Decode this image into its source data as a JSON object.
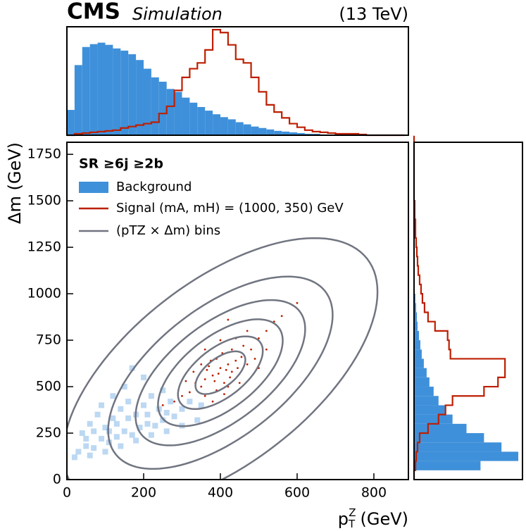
{
  "chart_data": [
    {
      "type": "scatter",
      "title": {
        "experiment": "CMS",
        "status": "Simulation",
        "energy": "(13 TeV)"
      },
      "x_label": {
        "base": "p",
        "sub": "T",
        "sup": "Z",
        "unit": "(GeV)"
      },
      "y_label": "Δm (GeV)",
      "legend_title": "SR  ≥6j  ≥2b",
      "xlim": [
        0,
        890
      ],
      "ylim": [
        0,
        1815
      ],
      "xticks": [
        0,
        200,
        400,
        600,
        800
      ],
      "yticks": [
        0,
        250,
        500,
        750,
        1000,
        1250,
        1500,
        1750
      ],
      "series": [
        {
          "name": "Background",
          "color": "#3f90da",
          "x": [
            30,
            50,
            70,
            90,
            110,
            130,
            150,
            170,
            190,
            210,
            230,
            250,
            40,
            60,
            80,
            100,
            120,
            140,
            160,
            180,
            200,
            220,
            240,
            260,
            280,
            300,
            20,
            60,
            100,
            140,
            180,
            220,
            260,
            300,
            340,
            120,
            90,
            150,
            200,
            170,
            250,
            320,
            50,
            70,
            110,
            130,
            160,
            210,
            270,
            350
          ],
          "y": [
            150,
            180,
            170,
            220,
            200,
            230,
            260,
            240,
            280,
            300,
            290,
            320,
            250,
            300,
            350,
            280,
            330,
            380,
            420,
            350,
            400,
            450,
            380,
            360,
            340,
            380,
            120,
            130,
            150,
            180,
            210,
            240,
            260,
            290,
            320,
            450,
            400,
            500,
            550,
            600,
            480,
            420,
            220,
            260,
            260,
            300,
            330,
            350,
            420,
            400
          ]
        },
        {
          "name": "Signal (mA, mH) = (1000, 350) GeV",
          "color": "#bd1f01",
          "x": [
            380,
            400,
            420,
            360,
            390,
            410,
            430,
            370,
            350,
            440,
            395,
            415,
            385,
            405,
            425,
            365,
            445,
            375,
            455,
            335,
            480,
            320,
            500,
            300,
            460,
            390,
            350,
            430,
            470,
            410,
            520,
            280,
            540,
            360,
            450,
            400,
            330,
            490,
            420,
            380,
            560,
            250,
            470,
            440,
            310,
            500,
            360,
            600,
            420,
            520
          ],
          "y": [
            560,
            600,
            620,
            540,
            650,
            520,
            580,
            610,
            500,
            640,
            570,
            590,
            530,
            680,
            550,
            590,
            600,
            640,
            660,
            520,
            700,
            470,
            760,
            450,
            720,
            480,
            620,
            700,
            620,
            460,
            800,
            420,
            850,
            700,
            520,
            750,
            580,
            650,
            500,
            420,
            880,
            400,
            800,
            760,
            530,
            600,
            450,
            950,
            860,
            700
          ]
        }
      ],
      "contours": {
        "name": "(pTZ × Δm) bins",
        "color": "#717581",
        "center": [
          400,
          575
        ],
        "sigma": [
          65,
          115
        ],
        "rho": 0.6,
        "levels": [
          1,
          1.7,
          2.5,
          3.4,
          4.5,
          6.3
        ]
      }
    },
    {
      "type": "histogram",
      "bins": [
        0,
        20,
        40,
        60,
        80,
        100,
        120,
        140,
        160,
        180,
        200,
        220,
        240,
        260,
        280,
        300,
        320,
        340,
        360,
        380,
        400,
        420,
        440,
        460,
        480,
        500,
        520,
        540,
        560,
        580,
        600,
        620,
        640,
        660,
        680,
        700,
        720,
        740,
        760,
        780,
        800,
        820,
        840,
        860,
        880
      ],
      "ylim": [
        0,
        150
      ],
      "series": [
        {
          "color": "#3f90da",
          "style": "filled",
          "values": [
            35,
            97,
            122,
            126,
            128,
            125,
            120,
            117,
            112,
            104,
            92,
            80,
            74,
            64,
            60,
            52,
            45,
            39,
            34,
            29,
            25,
            22,
            18,
            15,
            12,
            10,
            8,
            6,
            5,
            4,
            3,
            2,
            2,
            1,
            1,
            1,
            1,
            0,
            0,
            0,
            0,
            0,
            0,
            0
          ]
        },
        {
          "color": "#bd1f01",
          "style": "step",
          "values": [
            0,
            2,
            3,
            4,
            5,
            6,
            7,
            10,
            12,
            14,
            16,
            18,
            30,
            40,
            62,
            80,
            92,
            100,
            118,
            146,
            142,
            125,
            105,
            100,
            80,
            60,
            42,
            32,
            24,
            16,
            11,
            7,
            5,
            4,
            3,
            2,
            2,
            2,
            1,
            0,
            0,
            0,
            0,
            0
          ]
        }
      ]
    },
    {
      "type": "histogram",
      "orientation": "horizontal",
      "bins": [
        0,
        50,
        100,
        150,
        200,
        250,
        300,
        350,
        400,
        450,
        500,
        550,
        600,
        650,
        700,
        750,
        800,
        850,
        900,
        950,
        1000,
        1050,
        1100,
        1150,
        1200,
        1250,
        1300,
        1350,
        1400,
        1450,
        1500,
        1550,
        1600,
        1650,
        1700,
        1750,
        1800,
        1850
      ],
      "xlim": [
        0,
        155
      ],
      "series": [
        {
          "color": "#3f90da",
          "style": "filled",
          "values": [
            0,
            95,
            149,
            125,
            100,
            75,
            55,
            45,
            35,
            28,
            22,
            18,
            14,
            11,
            9,
            7,
            5,
            4,
            3,
            2,
            1,
            1,
            0,
            0,
            0,
            0,
            0,
            0,
            0,
            0,
            0,
            0,
            0,
            0,
            0,
            0,
            0
          ]
        },
        {
          "color": "#bd1f01",
          "style": "step",
          "values": [
            0,
            2,
            3,
            5,
            8,
            20,
            35,
            45,
            55,
            100,
            120,
            130,
            130,
            52,
            50,
            48,
            30,
            20,
            15,
            12,
            10,
            8,
            6,
            5,
            4,
            3,
            2,
            2,
            1,
            1,
            0,
            0,
            0,
            0,
            0,
            0,
            0
          ]
        }
      ]
    }
  ]
}
